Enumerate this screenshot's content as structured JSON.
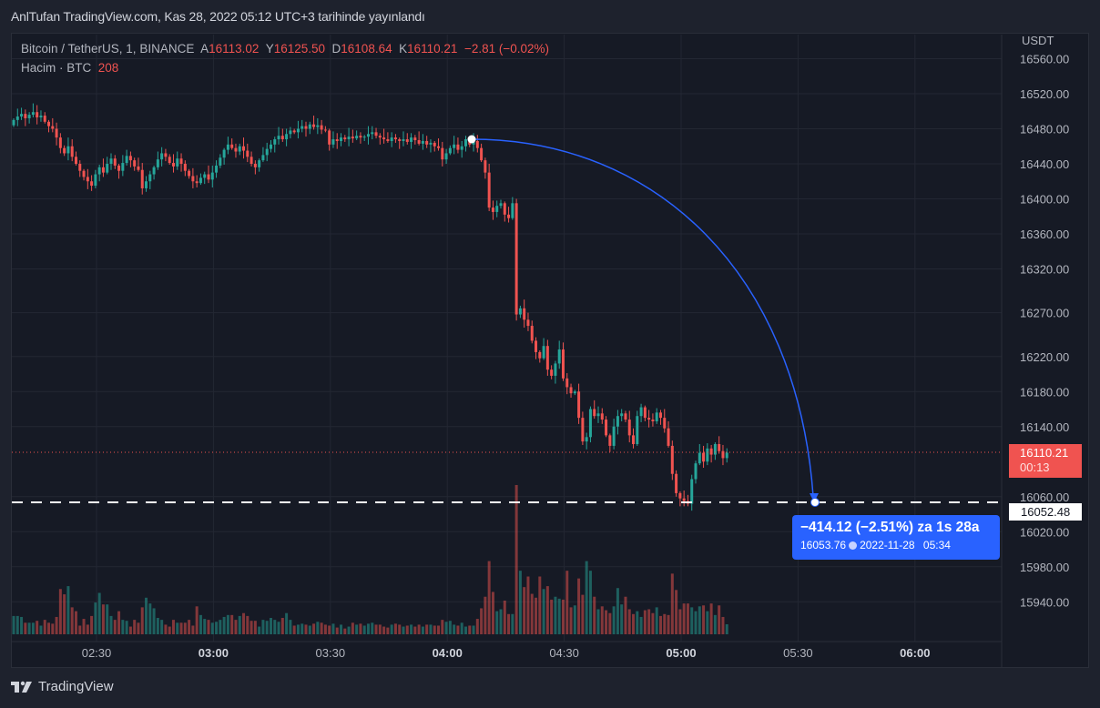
{
  "header": {
    "published": "AnlTufan TradingView.com, Kas 28, 2022 05:12 UTC+3 tarihinde yayınlandı"
  },
  "legend": {
    "symbol": "Bitcoin / TetherUS, 1, BINANCE",
    "open_label": "A",
    "open": "16113.02",
    "high_label": "Y",
    "high": "16125.50",
    "low_label": "D",
    "low": "16108.64",
    "close_label": "K",
    "close": "16110.21",
    "change": "−2.81 (−0.02%)",
    "volume_label": "Hacim · BTC",
    "volume": "208"
  },
  "colors": {
    "up": "#26a69a",
    "down": "#f05350",
    "measure": "#2962ff",
    "background": "#161a25"
  },
  "price_axis": {
    "currency": "USDT",
    "last_price": "16110.21",
    "countdown": "00:13",
    "target_price": "16052.48"
  },
  "measurement": {
    "change": "−414.12 (−2.51%) za 1s 28a",
    "price": "16053.76",
    "icon": "clock-icon",
    "date": "2022-11-28",
    "time": "05:34"
  },
  "logo": {
    "text": "TradingView"
  },
  "chart_data": {
    "type": "candlestick",
    "symbol": "BTCUSDT",
    "interval_minutes": 1,
    "start_time": "02:09",
    "y_ticks": [
      "16560.00",
      "16520.00",
      "16480.00",
      "16440.00",
      "16400.00",
      "16360.00",
      "16320.00",
      "16270.00",
      "16220.00",
      "16180.00",
      "16140.00",
      "16060.00",
      "16020.00",
      "15980.00",
      "15940.00"
    ],
    "x_ticks": [
      {
        "label": "02:30",
        "bold": false
      },
      {
        "label": "03:00",
        "bold": true
      },
      {
        "label": "03:30",
        "bold": false
      },
      {
        "label": "04:00",
        "bold": true
      },
      {
        "label": "04:30",
        "bold": false
      },
      {
        "label": "05:00",
        "bold": true
      },
      {
        "label": "05:30",
        "bold": false
      },
      {
        "label": "06:00",
        "bold": true
      }
    ],
    "ylim": [
      15910,
      16590
    ],
    "first_open": 16484,
    "close": [
      16490,
      16494,
      16497,
      16492,
      16496,
      16499,
      16493,
      16495,
      16488,
      16483,
      16480,
      16470,
      16458,
      16452,
      16460,
      16448,
      16440,
      16432,
      16425,
      16420,
      16415,
      16428,
      16436,
      16430,
      16440,
      16446,
      16438,
      16432,
      16441,
      16449,
      16444,
      16437,
      16433,
      16412,
      16420,
      16428,
      16436,
      16445,
      16452,
      16448,
      16441,
      16437,
      16446,
      16440,
      16432,
      16426,
      16420,
      16418,
      16424,
      16428,
      16422,
      16430,
      16438,
      16447,
      16456,
      16462,
      16458,
      16454,
      16460,
      16455,
      16448,
      16440,
      16436,
      16444,
      16450,
      16457,
      16462,
      16468,
      16472,
      16468,
      16474,
      16478,
      16476,
      16480,
      16483,
      16480,
      16485,
      16482,
      16484,
      16479,
      16478,
      16462,
      16468,
      16466,
      16470,
      16468,
      16471,
      16469,
      16472,
      16470,
      16471,
      16474,
      16476,
      16472,
      16470,
      16468,
      16466,
      16470,
      16468,
      16466,
      16468,
      16465,
      16470,
      16467,
      16463,
      16466,
      16462,
      16464,
      16460,
      16458,
      16445,
      16452,
      16458,
      16462,
      16456,
      16460,
      16468,
      16462,
      16466,
      16458,
      16444,
      16430,
      16390,
      16385,
      16392,
      16395,
      16382,
      16378,
      16395,
      16268,
      16275,
      16262,
      16255,
      16238,
      16225,
      16218,
      16232,
      16205,
      16198,
      16212,
      16228,
      16195,
      16185,
      16178,
      16180,
      16150,
      16123,
      16128,
      16160,
      16152,
      16155,
      16148,
      16130,
      16118,
      16140,
      16152,
      16155,
      16148,
      16130,
      16120,
      16152,
      16162,
      16150,
      16148,
      16146,
      16156,
      16150,
      16138,
      16118,
      16086,
      16064,
      16058,
      16055,
      16052,
      16080,
      16098,
      16110,
      16100,
      16115,
      16108,
      16120,
      16112,
      16104,
      16110.21
    ],
    "volume": [
      380,
      380,
      360,
      240,
      240,
      240,
      280,
      180,
      300,
      240,
      220,
      360,
      940,
      830,
      1000,
      560,
      480,
      180,
      320,
      200,
      380,
      660,
      860,
      620,
      620,
      380,
      300,
      480,
      300,
      280,
      160,
      300,
      240,
      560,
      760,
      640,
      540,
      340,
      300,
      200,
      160,
      300,
      240,
      240,
      240,
      300,
      180,
      580,
      400,
      320,
      300,
      240,
      260,
      300,
      360,
      400,
      400,
      300,
      380,
      440,
      380,
      280,
      280,
      160,
      300,
      280,
      340,
      300,
      260,
      340,
      440,
      300,
      180,
      200,
      220,
      200,
      180,
      220,
      260,
      240,
      200,
      180,
      220,
      140,
      200,
      120,
      160,
      240,
      200,
      220,
      180,
      220,
      240,
      200,
      200,
      160,
      140,
      200,
      220,
      200,
      160,
      180,
      200,
      160,
      200,
      160,
      200,
      200,
      180,
      180,
      300,
      260,
      280,
      200,
      180,
      240,
      160,
      180,
      180,
      320,
      540,
      780,
      1520,
      880,
      480,
      520,
      700,
      420,
      420,
      3100,
      1320,
      980,
      1200,
      840,
      760,
      1200,
      940,
      1000,
      720,
      780,
      740,
      720,
      1320,
      560,
      600,
      1160,
      820,
      1520,
      1320,
      780,
      520,
      580,
      500,
      440,
      580,
      960,
      620,
      780,
      520,
      420,
      480,
      360,
      500,
      520,
      440,
      560,
      380,
      420,
      400,
      1260,
      920,
      520,
      640,
      640,
      560,
      480,
      580,
      600,
      480,
      640,
      400,
      600,
      360,
      208
    ],
    "measure_from": {
      "time": "04:06",
      "price": 16467.88
    },
    "measure_to": {
      "time": "05:34",
      "price": 16053.76
    },
    "grid": true
  }
}
